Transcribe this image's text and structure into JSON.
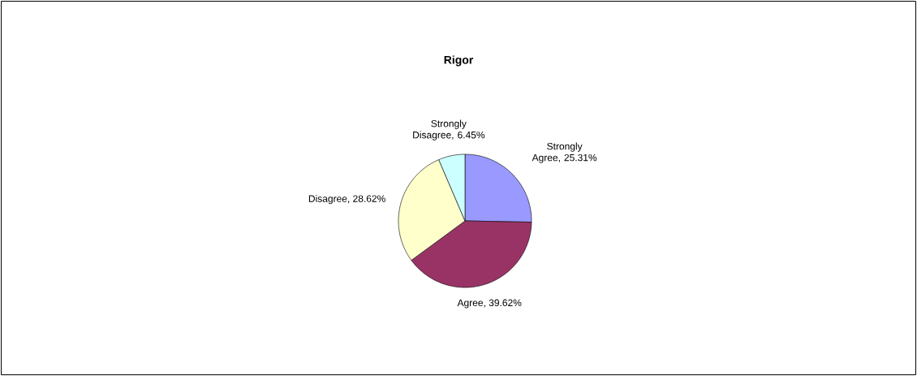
{
  "chart_data": {
    "type": "pie",
    "title": "Rigor",
    "categories": [
      "Strongly Agree",
      "Agree",
      "Disagree",
      "Strongly Disagree"
    ],
    "values": [
      25.31,
      39.62,
      28.62,
      6.45
    ],
    "value_labels": [
      ", 25.31%",
      ", 39.62%",
      ", 28.62%",
      ", 6.45%"
    ],
    "colors": [
      "#9999ff",
      "#993366",
      "#ffffcc",
      "#ccffff"
    ]
  }
}
